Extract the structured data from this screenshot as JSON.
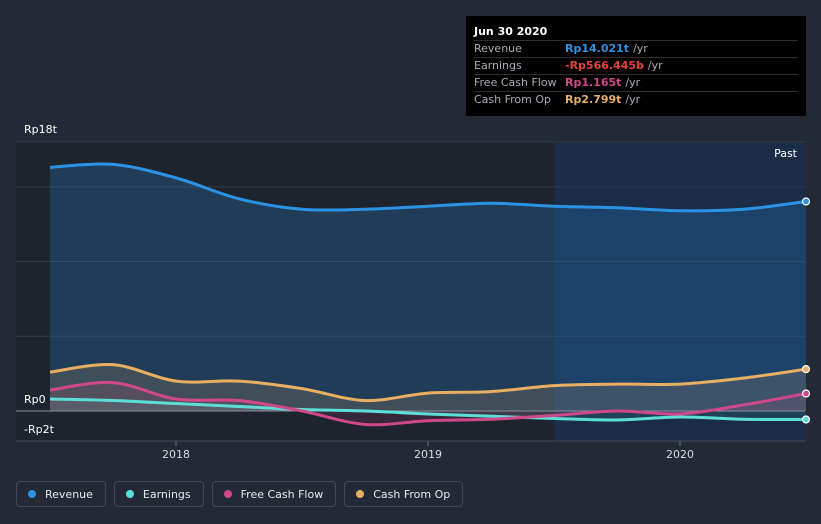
{
  "chart_data": {
    "type": "area",
    "title": "",
    "y_tick_labels": [
      "Rp18t",
      "Rp0",
      "-Rp2t"
    ],
    "ylim": [
      -2,
      18
    ],
    "y_unit": "trillion IDR",
    "x_tick_labels": [
      "2018",
      "2019",
      "2020"
    ],
    "x_ticks": [
      2018,
      2019,
      2020
    ],
    "xlim": [
      2017.42,
      2020.5
    ],
    "forecast_label": "Past",
    "forecast_start": 2019.5,
    "series": [
      {
        "name": "Revenue",
        "color": "#2b93e6",
        "x": [
          2017.5,
          2017.75,
          2018.0,
          2018.25,
          2018.5,
          2018.75,
          2019.0,
          2019.25,
          2019.5,
          2019.75,
          2020.0,
          2020.25,
          2020.5
        ],
        "values": [
          16.3,
          16.5,
          15.6,
          14.2,
          13.5,
          13.5,
          13.7,
          13.9,
          13.7,
          13.6,
          13.4,
          13.5,
          14.02
        ]
      },
      {
        "name": "Earnings",
        "color": "#5ddfd9",
        "x": [
          2017.5,
          2017.75,
          2018.0,
          2018.25,
          2018.5,
          2018.75,
          2019.0,
          2019.25,
          2019.5,
          2019.75,
          2020.0,
          2020.25,
          2020.5
        ],
        "values": [
          0.8,
          0.7,
          0.5,
          0.3,
          0.1,
          0.0,
          -0.2,
          -0.35,
          -0.5,
          -0.6,
          -0.4,
          -0.55,
          -0.57
        ]
      },
      {
        "name": "Free Cash Flow",
        "color": "#d1488a",
        "x": [
          2017.5,
          2017.75,
          2018.0,
          2018.25,
          2018.5,
          2018.75,
          2019.0,
          2019.25,
          2019.5,
          2019.75,
          2020.0,
          2020.25,
          2020.5
        ],
        "values": [
          1.4,
          1.9,
          0.8,
          0.7,
          0.0,
          -0.9,
          -0.65,
          -0.55,
          -0.3,
          0.0,
          -0.2,
          0.4,
          1.17
        ]
      },
      {
        "name": "Cash From Op",
        "color": "#e8ae62",
        "x": [
          2017.5,
          2017.75,
          2018.0,
          2018.25,
          2018.5,
          2018.75,
          2019.0,
          2019.25,
          2019.5,
          2019.75,
          2020.0,
          2020.25,
          2020.5
        ],
        "values": [
          2.6,
          3.1,
          2.0,
          2.0,
          1.5,
          0.7,
          1.2,
          1.3,
          1.7,
          1.8,
          1.8,
          2.2,
          2.8
        ]
      }
    ]
  },
  "tooltip": {
    "date": "Jun 30 2020",
    "rows": [
      {
        "label": "Revenue",
        "value": "Rp14.021t",
        "unit": "/yr",
        "color": "#2b93e6"
      },
      {
        "label": "Earnings",
        "value": "-Rp566.445b",
        "unit": "/yr",
        "color": "#e8413c"
      },
      {
        "label": "Free Cash Flow",
        "value": "Rp1.165t",
        "unit": "/yr",
        "color": "#d1488a"
      },
      {
        "label": "Cash From Op",
        "value": "Rp2.799t",
        "unit": "/yr",
        "color": "#e8ae62"
      }
    ]
  },
  "legend": [
    {
      "label": "Revenue",
      "color": "#2b93e6"
    },
    {
      "label": "Earnings",
      "color": "#5ddfd9"
    },
    {
      "label": "Free Cash Flow",
      "color": "#d1488a"
    },
    {
      "label": "Cash From Op",
      "color": "#e8ae62"
    }
  ]
}
